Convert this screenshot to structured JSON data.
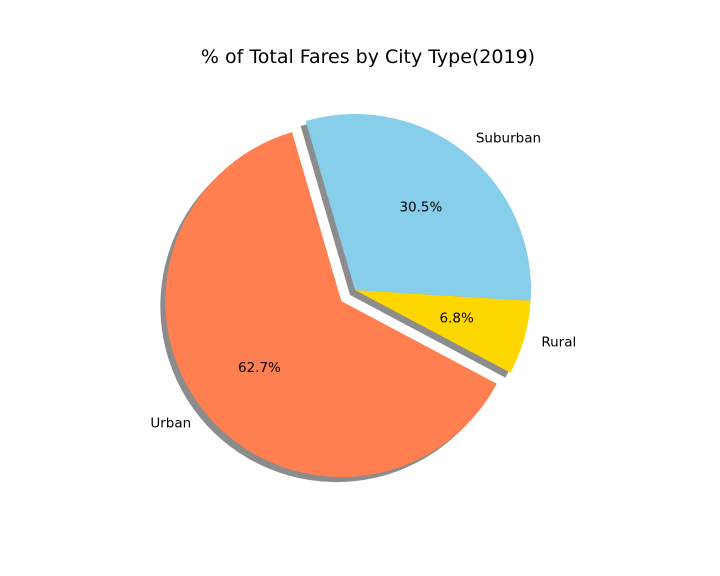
{
  "chart_data": {
    "type": "pie",
    "title": "% of Total Fares by City Type(2019)",
    "series": [
      {
        "name": "Rural",
        "value": 6.8,
        "label": "Rural",
        "pct_label": "6.8%",
        "color": "#FFD700",
        "explode": 0.0
      },
      {
        "name": "Suburban",
        "value": 30.5,
        "label": "Suburban",
        "pct_label": "30.5%",
        "color": "#87CEEB",
        "explode": 0.0
      },
      {
        "name": "Urban",
        "value": 62.7,
        "label": "Urban",
        "pct_label": "62.7%",
        "color": "#FF7F50",
        "explode": 0.1
      }
    ],
    "start_angle_deg": -28,
    "shadow": true,
    "legend": false
  }
}
